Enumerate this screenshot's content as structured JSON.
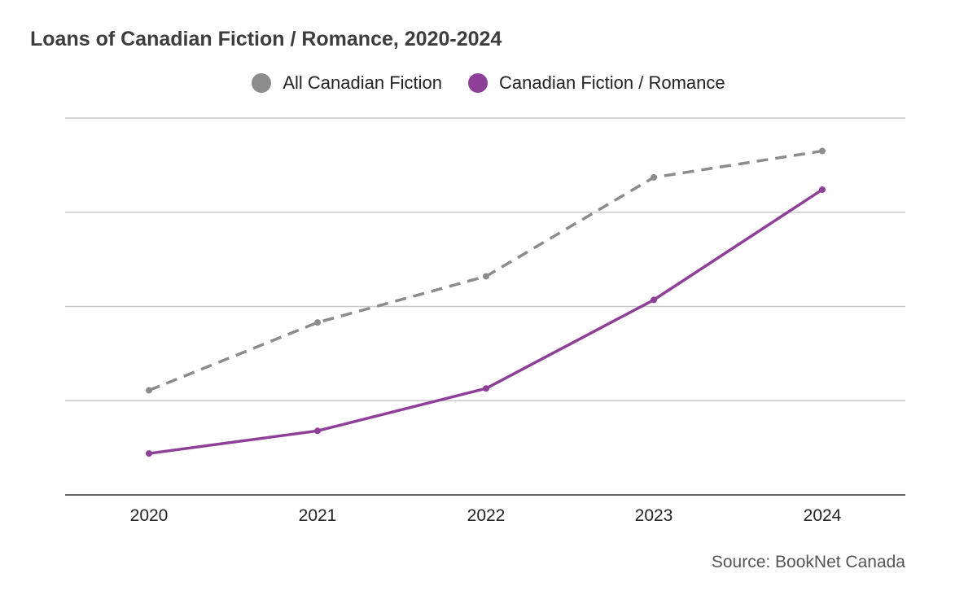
{
  "chart_data": {
    "type": "line",
    "title": "Loans of Canadian Fiction / Romance, 2020-2024",
    "xlabel": "",
    "ylabel": "",
    "categories": [
      "2020",
      "2021",
      "2022",
      "2023",
      "2024"
    ],
    "ylim": [
      0,
      4
    ],
    "grid": true,
    "legend_position": "top-center",
    "series": [
      {
        "name": "All Canadian Fiction",
        "color": "#8c8c8c",
        "dash": "dashed",
        "values": [
          1.11,
          1.83,
          2.32,
          3.37,
          3.65
        ]
      },
      {
        "name": "Canadian Fiction / Romance",
        "color": "#8e3f97",
        "dash": "solid",
        "values": [
          0.44,
          0.68,
          1.13,
          2.07,
          3.24
        ]
      }
    ],
    "source": "Source: BookNet Canada"
  }
}
